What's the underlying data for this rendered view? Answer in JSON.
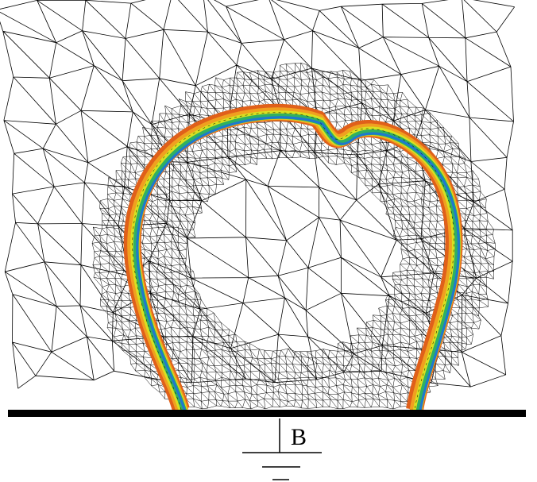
{
  "label": "B"
}
